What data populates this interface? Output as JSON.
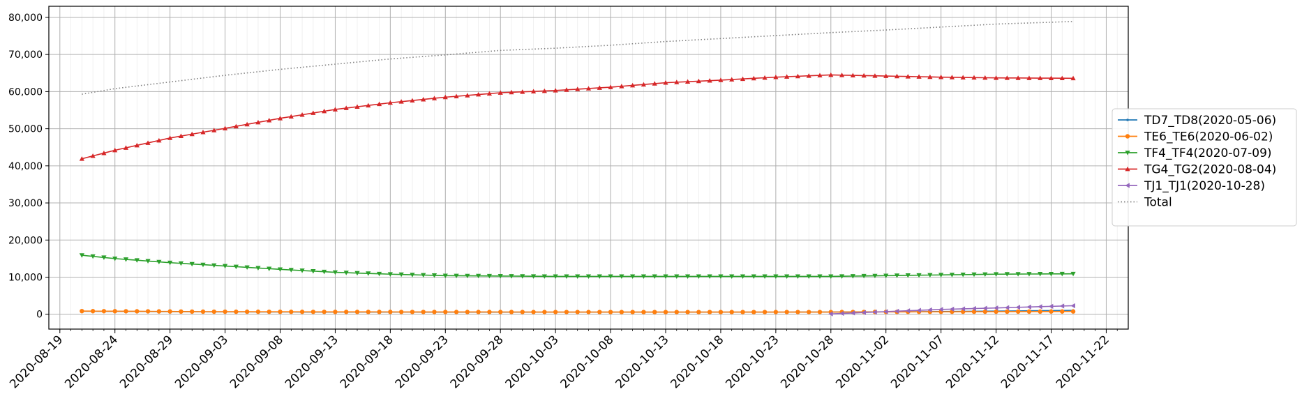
{
  "chart_data": {
    "type": "line",
    "title": "",
    "xlabel": "",
    "ylabel": "",
    "x_tick_labels": [
      "2020-08-19",
      "2020-08-24",
      "2020-08-29",
      "2020-09-03",
      "2020-09-08",
      "2020-09-13",
      "2020-09-18",
      "2020-09-23",
      "2020-09-28",
      "2020-10-03",
      "2020-10-08",
      "2020-10-13",
      "2020-10-18",
      "2020-10-23",
      "2020-10-28",
      "2020-11-02",
      "2020-11-07",
      "2020-11-12",
      "2020-11-17",
      "2020-11-22"
    ],
    "y_tick_labels": [
      "0",
      "10,000",
      "20,000",
      "30,000",
      "40,000",
      "50,000",
      "60,000",
      "70,000",
      "80,000"
    ],
    "xlim": [
      "2020-08-18",
      "2020-11-24"
    ],
    "ylim": [
      -4000,
      83000
    ],
    "grid": true,
    "minor_grid_x": "daily",
    "legend_position": "right, outside plot area",
    "series": [
      {
        "name": "TD7_TD8(2020-05-06)",
        "color": "#1f77b4",
        "marker": "point",
        "linestyle": "solid",
        "points": [
          [
            "2020-08-21",
            800
          ],
          [
            "2020-08-26",
            750
          ],
          [
            "2020-09-01",
            650
          ],
          [
            "2020-09-10",
            600
          ],
          [
            "2020-09-20",
            580
          ],
          [
            "2020-10-01",
            560
          ],
          [
            "2020-10-10",
            560
          ],
          [
            "2020-10-20",
            560
          ],
          [
            "2020-10-28",
            600
          ],
          [
            "2020-11-05",
            700
          ],
          [
            "2020-11-12",
            850
          ],
          [
            "2020-11-19",
            1050
          ]
        ]
      },
      {
        "name": "TE6_TE6(2020-06-02)",
        "color": "#ff7f0e",
        "marker": "circle",
        "linestyle": "solid",
        "points": [
          [
            "2020-08-21",
            850
          ],
          [
            "2020-08-26",
            800
          ],
          [
            "2020-09-01",
            700
          ],
          [
            "2020-09-10",
            650
          ],
          [
            "2020-09-20",
            620
          ],
          [
            "2020-10-01",
            600
          ],
          [
            "2020-10-10",
            590
          ],
          [
            "2020-10-20",
            590
          ],
          [
            "2020-10-28",
            600
          ],
          [
            "2020-11-05",
            650
          ],
          [
            "2020-11-12",
            700
          ],
          [
            "2020-11-19",
            750
          ]
        ]
      },
      {
        "name": "TF4_TF4(2020-07-09)",
        "color": "#2ca02c",
        "marker": "triangle-down",
        "linestyle": "solid",
        "points": [
          [
            "2020-08-21",
            15900
          ],
          [
            "2020-08-24",
            15000
          ],
          [
            "2020-08-29",
            13900
          ],
          [
            "2020-09-03",
            13000
          ],
          [
            "2020-09-08",
            12100
          ],
          [
            "2020-09-13",
            11300
          ],
          [
            "2020-09-18",
            10800
          ],
          [
            "2020-09-23",
            10400
          ],
          [
            "2020-09-28",
            10300
          ],
          [
            "2020-10-03",
            10200
          ],
          [
            "2020-10-13",
            10200
          ],
          [
            "2020-10-23",
            10200
          ],
          [
            "2020-10-28",
            10200
          ],
          [
            "2020-11-02",
            10400
          ],
          [
            "2020-11-07",
            10600
          ],
          [
            "2020-11-12",
            10800
          ],
          [
            "2020-11-19",
            10900
          ]
        ]
      },
      {
        "name": "TG4_TG2(2020-08-04)",
        "color": "#d62728",
        "marker": "triangle-up",
        "linestyle": "solid",
        "points": [
          [
            "2020-08-21",
            41900
          ],
          [
            "2020-08-24",
            44200
          ],
          [
            "2020-08-29",
            47500
          ],
          [
            "2020-09-03",
            50100
          ],
          [
            "2020-09-08",
            52800
          ],
          [
            "2020-09-13",
            55200
          ],
          [
            "2020-09-18",
            57000
          ],
          [
            "2020-09-23",
            58500
          ],
          [
            "2020-09-28",
            59700
          ],
          [
            "2020-10-03",
            60300
          ],
          [
            "2020-10-08",
            61200
          ],
          [
            "2020-10-13",
            62400
          ],
          [
            "2020-10-18",
            63100
          ],
          [
            "2020-10-23",
            63900
          ],
          [
            "2020-10-28",
            64500
          ],
          [
            "2020-11-02",
            64200
          ],
          [
            "2020-11-07",
            63900
          ],
          [
            "2020-11-12",
            63700
          ],
          [
            "2020-11-19",
            63600
          ]
        ]
      },
      {
        "name": "TJ1_TJ1(2020-10-28)",
        "color": "#9467bd",
        "marker": "triangle-left",
        "linestyle": "solid",
        "points": [
          [
            "2020-10-28",
            100
          ],
          [
            "2020-11-02",
            700
          ],
          [
            "2020-11-07",
            1300
          ],
          [
            "2020-11-12",
            1700
          ],
          [
            "2020-11-19",
            2300
          ]
        ]
      },
      {
        "name": "Total",
        "color": "#808080",
        "marker": "none",
        "linestyle": "dotted",
        "points": [
          [
            "2020-08-21",
            59300
          ],
          [
            "2020-08-24",
            60800
          ],
          [
            "2020-08-29",
            62600
          ],
          [
            "2020-09-03",
            64400
          ],
          [
            "2020-09-08",
            66000
          ],
          [
            "2020-09-13",
            67400
          ],
          [
            "2020-09-18",
            68800
          ],
          [
            "2020-09-23",
            69900
          ],
          [
            "2020-09-28",
            71100
          ],
          [
            "2020-10-03",
            71700
          ],
          [
            "2020-10-08",
            72500
          ],
          [
            "2020-10-13",
            73500
          ],
          [
            "2020-10-18",
            74300
          ],
          [
            "2020-10-23",
            75100
          ],
          [
            "2020-10-28",
            75900
          ],
          [
            "2020-11-02",
            76600
          ],
          [
            "2020-11-07",
            77400
          ],
          [
            "2020-11-12",
            78200
          ],
          [
            "2020-11-19",
            78900
          ]
        ]
      }
    ]
  }
}
